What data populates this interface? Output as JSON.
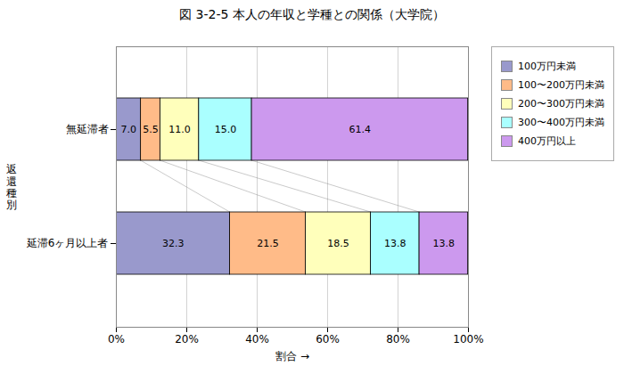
{
  "chart_data": {
    "type": "bar",
    "orientation": "horizontal",
    "stacked": true,
    "title": "図 3-2-5  本人の年収と学種との関係（大学院）",
    "categories": [
      "無延滞者",
      "延滞6ヶ月以上者"
    ],
    "series": [
      {
        "name": "100万円未満",
        "color": "#9999CC",
        "values": [
          7.0,
          32.3
        ],
        "value_labels": [
          "7.0",
          "32.3"
        ]
      },
      {
        "name": "100〜200万円未満",
        "color": "#FFBB88",
        "values": [
          5.5,
          21.5
        ],
        "value_labels": [
          "5.5",
          "21.5"
        ]
      },
      {
        "name": "200〜300万円未満",
        "color": "#FFFFBB",
        "values": [
          11.0,
          18.5
        ],
        "value_labels": [
          "11.0",
          "18.5"
        ]
      },
      {
        "name": "300〜400万円未満",
        "color": "#AAFFFF",
        "values": [
          15.0,
          13.8
        ],
        "value_labels": [
          "15.0",
          "13.8"
        ]
      },
      {
        "name": "400万円以上",
        "color": "#CC99EE",
        "values": [
          61.4,
          13.8
        ],
        "value_labels": [
          "61.4",
          "13.8"
        ]
      }
    ],
    "xlabel": "割合",
    "ylabel": "返\n還\n種\n別",
    "xlim": [
      0,
      100
    ],
    "xticks": [
      {
        "value": 0,
        "label": "0%"
      },
      {
        "value": 20,
        "label": "20%"
      },
      {
        "value": 40,
        "label": "40%"
      },
      {
        "value": 60,
        "label": "60%"
      },
      {
        "value": 80,
        "label": "80%"
      },
      {
        "value": 100,
        "label": "100%"
      }
    ],
    "grid": true,
    "legend": "right",
    "data_labels": true
  }
}
